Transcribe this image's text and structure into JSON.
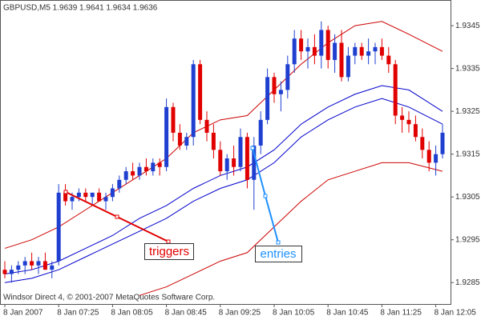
{
  "chart_data": {
    "type": "candlestick",
    "title": "GBPUSD,M5  1.9639 1.9641 1.9634 1.9636",
    "footer": "Windsor Direct 4, © 2001-2007 MetaQuotes Software Corp.",
    "categories": [
      "8 Jan 2007",
      null,
      null,
      null,
      null,
      null,
      null,
      null,
      "8 Jan 07:25",
      null,
      null,
      null,
      null,
      null,
      null,
      null,
      "8 Jan 08:05",
      null,
      null,
      null,
      null,
      null,
      null,
      null,
      "8 Jan 08:45",
      null,
      null,
      null,
      null,
      null,
      null,
      null,
      "8 Jan 09:25",
      null,
      null,
      null,
      null,
      null,
      null,
      null,
      "8 Jan 10:05",
      null,
      null,
      null,
      null,
      null,
      null,
      null,
      "8 Jan 10:45",
      null,
      null,
      null,
      null,
      null,
      null,
      null,
      "8 Jan 11:25",
      null,
      null,
      null,
      null,
      null,
      null,
      null,
      "8 Jan 12:05",
      null
    ],
    "open": [
      1.9288,
      1.9287,
      1.9288,
      1.9289,
      1.929,
      1.9289,
      1.929,
      1.9288,
      1.929,
      1.9306,
      1.9304,
      1.9305,
      1.9306,
      1.9305,
      1.9306,
      1.9304,
      1.9305,
      1.9307,
      1.9309,
      1.9311,
      1.931,
      1.9312,
      1.9311,
      1.9313,
      1.9312,
      1.9326,
      1.932,
      1.9317,
      1.9319,
      1.9336,
      1.9323,
      1.932,
      1.9316,
      1.9311,
      1.9314,
      1.9312,
      1.9319,
      1.9309,
      1.9317,
      1.9323,
      1.9333,
      1.9329,
      1.933,
      1.9336,
      1.9342,
      1.9339,
      1.934,
      1.9338,
      1.9344,
      1.9337,
      1.9341,
      1.9333,
      1.9338,
      1.934,
      1.9338,
      1.9339,
      1.934,
      1.9338,
      1.9336,
      1.9324,
      1.9323,
      1.9322,
      1.9319,
      1.9316,
      1.9313,
      1.9315
    ],
    "high": [
      1.929,
      1.9289,
      1.929,
      1.9291,
      1.9292,
      1.9291,
      1.9292,
      1.929,
      1.9308,
      1.9308,
      1.9306,
      1.9307,
      1.9307,
      1.9306,
      1.9307,
      1.9306,
      1.9308,
      1.931,
      1.9312,
      1.9313,
      1.9313,
      1.9314,
      1.9314,
      1.9314,
      1.9328,
      1.9327,
      1.9322,
      1.932,
      1.9337,
      1.9337,
      1.9325,
      1.9322,
      1.9318,
      1.9315,
      1.9317,
      1.9321,
      1.932,
      1.9319,
      1.9325,
      1.9335,
      1.9334,
      1.9332,
      1.9338,
      1.9344,
      1.9344,
      1.9342,
      1.9343,
      1.9346,
      1.9345,
      1.9343,
      1.9344,
      1.934,
      1.9341,
      1.9341,
      1.9342,
      1.9341,
      1.9342,
      1.934,
      1.9337,
      1.9326,
      1.9325,
      1.9324,
      1.9321,
      1.9318,
      1.9317,
      1.9322
    ],
    "low": [
      1.9286,
      1.9285,
      1.9287,
      1.9287,
      1.9288,
      1.9287,
      1.9288,
      1.9286,
      1.9289,
      1.9303,
      1.9302,
      1.9304,
      1.9304,
      1.9303,
      1.9304,
      1.9302,
      1.9304,
      1.9306,
      1.9308,
      1.9309,
      1.9309,
      1.931,
      1.931,
      1.931,
      1.9311,
      1.9318,
      1.9316,
      1.9316,
      1.9317,
      1.9322,
      1.9318,
      1.9314,
      1.931,
      1.9309,
      1.931,
      1.9311,
      1.9307,
      1.9302,
      1.9315,
      1.9322,
      1.9327,
      1.9325,
      1.9328,
      1.9334,
      1.9337,
      1.9335,
      1.9336,
      1.9335,
      1.9335,
      1.9334,
      1.9332,
      1.9332,
      1.9336,
      1.9337,
      1.9336,
      1.9336,
      1.9337,
      1.9334,
      1.9322,
      1.932,
      1.932,
      1.9318,
      1.9314,
      1.9311,
      1.931,
      1.9314
    ],
    "close": [
      1.9287,
      1.9288,
      1.9289,
      1.929,
      1.9289,
      1.929,
      1.9288,
      1.9289,
      1.9306,
      1.9304,
      1.9305,
      1.9306,
      1.9305,
      1.9306,
      1.9304,
      1.9305,
      1.9307,
      1.9309,
      1.9311,
      1.931,
      1.9312,
      1.9311,
      1.9313,
      1.9312,
      1.9326,
      1.932,
      1.9317,
      1.9319,
      1.9336,
      1.9323,
      1.932,
      1.9316,
      1.9311,
      1.9314,
      1.9312,
      1.9319,
      1.9309,
      1.9317,
      1.9323,
      1.9333,
      1.9329,
      1.933,
      1.9336,
      1.9342,
      1.9339,
      1.934,
      1.9338,
      1.9344,
      1.9337,
      1.9341,
      1.9333,
      1.9338,
      1.934,
      1.9338,
      1.9339,
      1.934,
      1.9338,
      1.9336,
      1.9324,
      1.9323,
      1.9322,
      1.9319,
      1.9316,
      1.9313,
      1.9315,
      1.932
    ],
    "up_color": "#1f3fd0",
    "down_color": "#e00000",
    "bands": [
      {
        "color": "#cc0000",
        "x": [
          0,
          4,
          8,
          12,
          16,
          20,
          24,
          28,
          32,
          36,
          40,
          44,
          48,
          52,
          56,
          60,
          65
        ],
        "values": [
          1.9293,
          1.9295,
          1.9298,
          1.9302,
          1.9306,
          1.931,
          1.9314,
          1.932,
          1.9323,
          1.9324,
          1.933,
          1.9336,
          1.9341,
          1.9345,
          1.9346,
          1.9343,
          1.9339
        ]
      },
      {
        "color": "#0000cc",
        "x": [
          0,
          4,
          8,
          12,
          16,
          20,
          24,
          28,
          32,
          36,
          40,
          44,
          48,
          52,
          56,
          60,
          65
        ],
        "values": [
          1.9287,
          1.9288,
          1.929,
          1.9293,
          1.9296,
          1.93,
          1.9303,
          1.9307,
          1.931,
          1.9312,
          1.9316,
          1.9322,
          1.9326,
          1.9329,
          1.9331,
          1.933,
          1.9325
        ]
      },
      {
        "color": "#0000cc",
        "x": [
          0,
          4,
          8,
          12,
          16,
          20,
          24,
          28,
          32,
          36,
          40,
          44,
          48,
          52,
          56,
          60,
          65
        ],
        "values": [
          1.9285,
          1.9286,
          1.9288,
          1.9291,
          1.9294,
          1.9297,
          1.93,
          1.9304,
          1.9307,
          1.9309,
          1.9313,
          1.9319,
          1.9323,
          1.9326,
          1.9328,
          1.9326,
          1.9322
        ]
      },
      {
        "color": "#cc0000",
        "x": [
          0,
          4,
          8,
          12,
          16,
          20,
          24,
          28,
          32,
          36,
          40,
          44,
          48,
          52,
          56,
          60,
          65
        ],
        "values": [
          null,
          null,
          null,
          null,
          null,
          1.9282,
          1.9284,
          1.9287,
          1.929,
          1.9292,
          1.9298,
          1.9304,
          1.9309,
          1.9311,
          1.9313,
          1.9313,
          1.9311
        ]
      }
    ],
    "annotations": [
      "triggers",
      "entries"
    ],
    "ylim": [
      1.928,
      1.9351
    ],
    "yticks": [
      1.9285,
      1.9295,
      1.9305,
      1.9315,
      1.9325,
      1.9335,
      1.9345
    ]
  }
}
